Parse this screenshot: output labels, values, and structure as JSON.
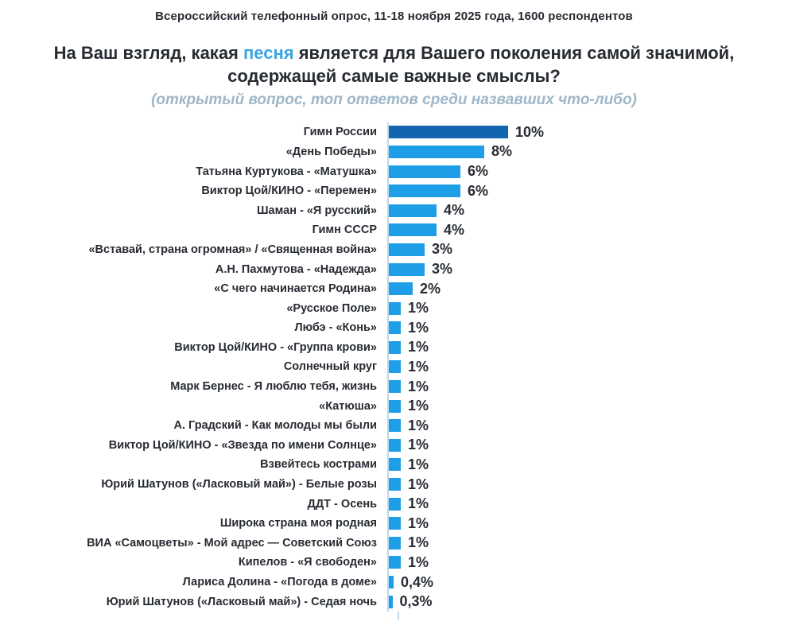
{
  "header": {
    "survey_line": "Всероссийский телефонный опрос, 11-18 ноября 2025 года, 1600 респондентов"
  },
  "question": {
    "line1_pre": "На Ваш взгляд, какая ",
    "line1_highlight": "песня",
    "line1_post": " является для Вашего поколения самой значимой,",
    "line2": "содержащей самые важные смыслы?",
    "subtitle": "(открытый вопрос, топ ответов среди назвавших что-либо)"
  },
  "colors": {
    "bar_default": "#1e9ee6",
    "bar_highlight": "#1465b0",
    "accent_text": "#3aa4e4",
    "subtitle_text": "#9db6c8",
    "axis_line": "#b9d8ee",
    "text_dark": "#272b32"
  },
  "chart_data": {
    "type": "bar",
    "orientation": "horizontal",
    "unit": "%",
    "title": "На Ваш взгляд, какая песня является для Вашего поколения самой значимой, содержащей самые важные смыслы?",
    "subtitle": "(открытый вопрос, топ ответов среди назвавших что-либо)",
    "xlim": [
      0,
      10
    ],
    "grid": false,
    "legend": false,
    "highlight_index": 0,
    "categories": [
      "Гимн России",
      "«День Победы»",
      "Татьяна Куртукова - «Матушка»",
      "Виктор Цой/КИНО - «Перемен»",
      "Шаман - «Я русский»",
      "Гимн СССР",
      "«Вставай, страна огромная» / «Священная война»",
      "А.Н. Пахмутова - «Надежда»",
      "«С чего начинается Родина»",
      "«Русское Поле»",
      "Любэ - «Конь»",
      "Виктор Цой/КИНО - «Группа крови»",
      "Солнечный круг",
      "Марк Бернес - Я люблю тебя, жизнь",
      "«Катюша»",
      "А. Градский - Как молоды мы были",
      "Виктор Цой/КИНО - «Звезда по имени Солнце»",
      "Взвейтесь кострами",
      "Юрий Шатунов («Ласковый май») - Белые розы",
      "ДДТ - Осень",
      "Широка страна моя родная",
      "ВИА «Самоцветы» - Мой адрес — Советский Союз",
      "Кипелов - «Я свободен»",
      "Лариса Долина - «Погода в доме»",
      "Юрий Шатунов («Ласковый май») - Седая ночь"
    ],
    "values": [
      10,
      8,
      6,
      6,
      4,
      4,
      3,
      3,
      2,
      1,
      1,
      1,
      1,
      1,
      1,
      1,
      1,
      1,
      1,
      1,
      1,
      1,
      1,
      0.4,
      0.3
    ],
    "value_labels": [
      "10%",
      "8%",
      "6%",
      "6%",
      "4%",
      "4%",
      "3%",
      "3%",
      "2%",
      "1%",
      "1%",
      "1%",
      "1%",
      "1%",
      "1%",
      "1%",
      "1%",
      "1%",
      "1%",
      "1%",
      "1%",
      "1%",
      "1%",
      "0,4%",
      "0,3%"
    ]
  }
}
